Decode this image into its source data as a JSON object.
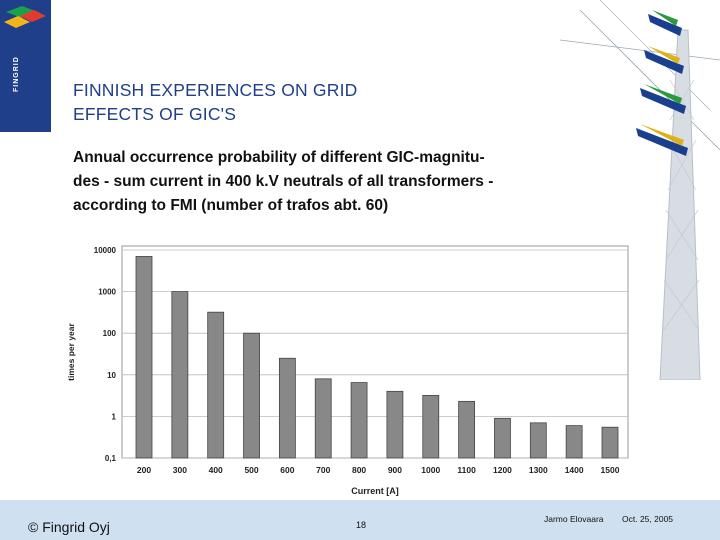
{
  "logo": {
    "text": "FINGRID",
    "icon": "fingrid-logo-icon"
  },
  "slide": {
    "title_line1": "FINNISH EXPERIENCES ON GRID",
    "title_line2": "EFFECTS OF GIC'S",
    "subtitle_line1": "Annual occurrence probability of different GIC-magnitu-",
    "subtitle_line2": "des - sum current in 400 k.V neutrals of all  transformers -",
    "subtitle_line3": "according to FMI (number of trafos abt. 60)"
  },
  "chart_data": {
    "type": "bar",
    "categories": [
      "200",
      "300",
      "400",
      "500",
      "600",
      "700",
      "800",
      "900",
      "1000",
      "1100",
      "1200",
      "1300",
      "1400",
      "1500"
    ],
    "values": [
      7000,
      1000,
      320,
      100,
      25,
      8,
      6.5,
      4,
      3.2,
      2.3,
      0.9,
      0.7,
      0.6,
      0.55
    ],
    "ylabel": "times per year",
    "xlabel": "Current [A]",
    "yscale": "log",
    "ylim": [
      0.1,
      10000
    ],
    "yticks": [
      "10000",
      "1000",
      "100",
      "10",
      "1",
      "0,1"
    ],
    "grid": true,
    "bar_color": "#888888"
  },
  "footer": {
    "copyright": "© Fingrid Oyj",
    "page": "18",
    "author": "Jarmo Elovaara",
    "date": "Oct. 25, 2005",
    "background": "#cfe0f0"
  }
}
